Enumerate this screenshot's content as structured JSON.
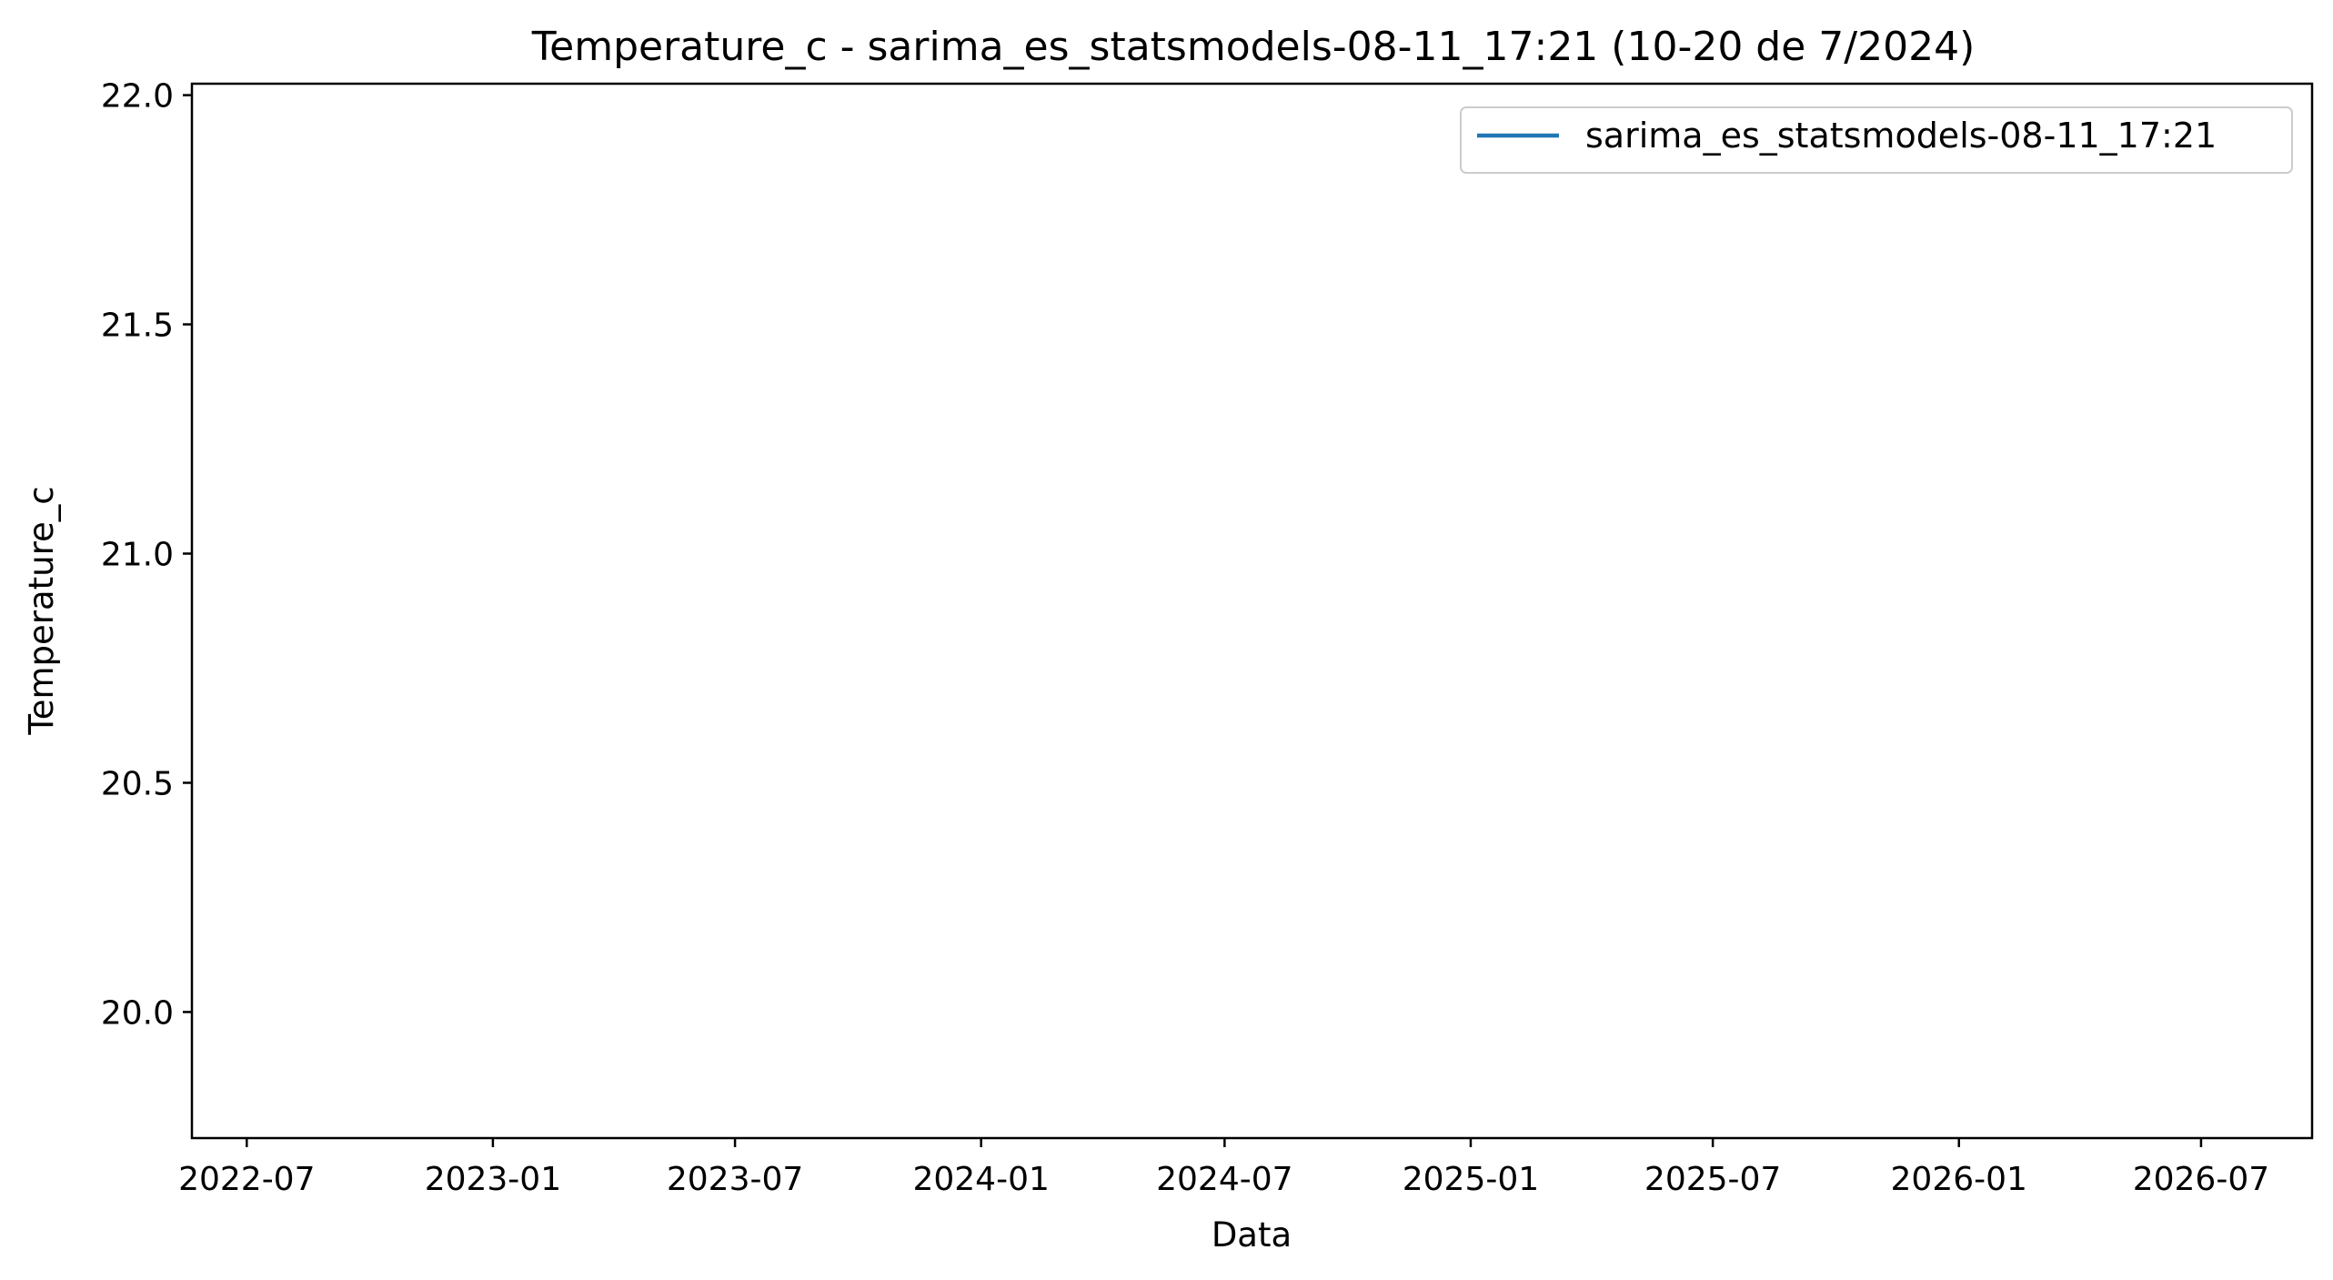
{
  "chart_data": {
    "type": "line",
    "title": "Temperature_c - sarima_es_statsmodels-08-11_17:21 (10-20 de 7/2024)",
    "xlabel": "Data",
    "ylabel": "Temperature_c",
    "x_ticks": [
      "2022-07",
      "2023-01",
      "2023-07",
      "2024-01",
      "2024-07",
      "2025-01",
      "2025-07",
      "2026-01",
      "2026-07"
    ],
    "y_ticks": [
      "20.0",
      "20.5",
      "21.0",
      "21.5",
      "22.0"
    ],
    "ylim": [
      19.725,
      22.025
    ],
    "xlim": [
      "2022-05-21",
      "2026-09-22"
    ],
    "grid": false,
    "legend_position": "upper right",
    "series": [
      {
        "name": "sarima_es_statsmodels-08-11_17:21",
        "color": "#1f77b4",
        "x": [],
        "y": []
      }
    ]
  }
}
